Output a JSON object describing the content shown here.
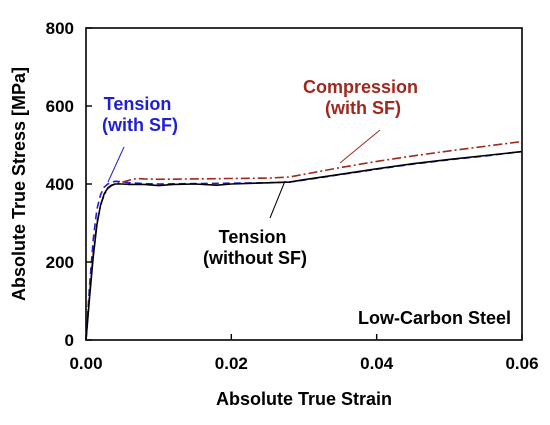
{
  "chart_data": {
    "type": "line",
    "xlabel": "Absolute True Strain",
    "ylabel": "Absolute True Stress [MPa]",
    "xlim": [
      0,
      0.06
    ],
    "ylim": [
      0,
      800
    ],
    "x_ticks": [
      0,
      0.02,
      0.04,
      0.06
    ],
    "x_tick_labels": [
      "0.00",
      "0.02",
      "0.04",
      "0.06"
    ],
    "y_ticks": [
      0,
      200,
      400,
      600,
      800
    ],
    "y_tick_labels": [
      "0",
      "200",
      "400",
      "600",
      "800"
    ],
    "grid": false,
    "series": [
      {
        "name": "Tension (with SF)",
        "color": "#1f1fd6",
        "dash": "dashed",
        "x": [
          0,
          0.0005,
          0.001,
          0.0015,
          0.002,
          0.0025,
          0.003,
          0.0035,
          0.004,
          0.005,
          0.006,
          0.008,
          0.01,
          0.015,
          0.02,
          0.025,
          0.028,
          0.03,
          0.035,
          0.04,
          0.045,
          0.05,
          0.055,
          0.06
        ],
        "y": [
          0,
          140,
          260,
          335,
          372,
          392,
          400,
          404,
          407,
          406,
          403,
          401,
          400,
          401,
          402,
          403,
          405,
          410,
          424,
          438,
          451,
          462,
          472,
          483
        ]
      },
      {
        "name": "Compression (with SF)",
        "color": "#a0281e",
        "dash": "dashdot",
        "x": [
          0,
          0.0005,
          0.001,
          0.0015,
          0.002,
          0.0025,
          0.003,
          0.0035,
          0.004,
          0.005,
          0.006,
          0.007,
          0.008,
          0.01,
          0.015,
          0.02,
          0.025,
          0.028,
          0.03,
          0.035,
          0.04,
          0.045,
          0.05,
          0.055,
          0.06
        ],
        "y": [
          0,
          120,
          225,
          300,
          345,
          372,
          388,
          396,
          400,
          405,
          410,
          414,
          413,
          412,
          413,
          414,
          415,
          418,
          425,
          442,
          458,
          472,
          485,
          497,
          509
        ]
      },
      {
        "name": "Tension (without SF)",
        "color": "#000000",
        "dash": "solid",
        "x": [
          0,
          0.0005,
          0.001,
          0.0015,
          0.002,
          0.0025,
          0.003,
          0.0035,
          0.004,
          0.005,
          0.006,
          0.008,
          0.01,
          0.012,
          0.015,
          0.018,
          0.02,
          0.025,
          0.028,
          0.03,
          0.035,
          0.04,
          0.045,
          0.05,
          0.055,
          0.06
        ],
        "y": [
          0,
          110,
          215,
          295,
          345,
          375,
          390,
          397,
          400,
          400,
          399,
          399,
          396,
          399,
          400,
          397,
          400,
          403,
          405,
          411,
          425,
          439,
          452,
          463,
          473,
          483
        ]
      }
    ],
    "annotations": [
      {
        "line1": "Tension",
        "line2": "(with SF)",
        "color": "#1f1fd6"
      },
      {
        "line1": "Compression",
        "line2": "(with SF)",
        "color": "#a0281e"
      },
      {
        "line1": "Tension",
        "line2": "(without SF)",
        "color": "#000000"
      },
      {
        "line1": "Low-Carbon Steel",
        "color": "#000000"
      }
    ]
  }
}
